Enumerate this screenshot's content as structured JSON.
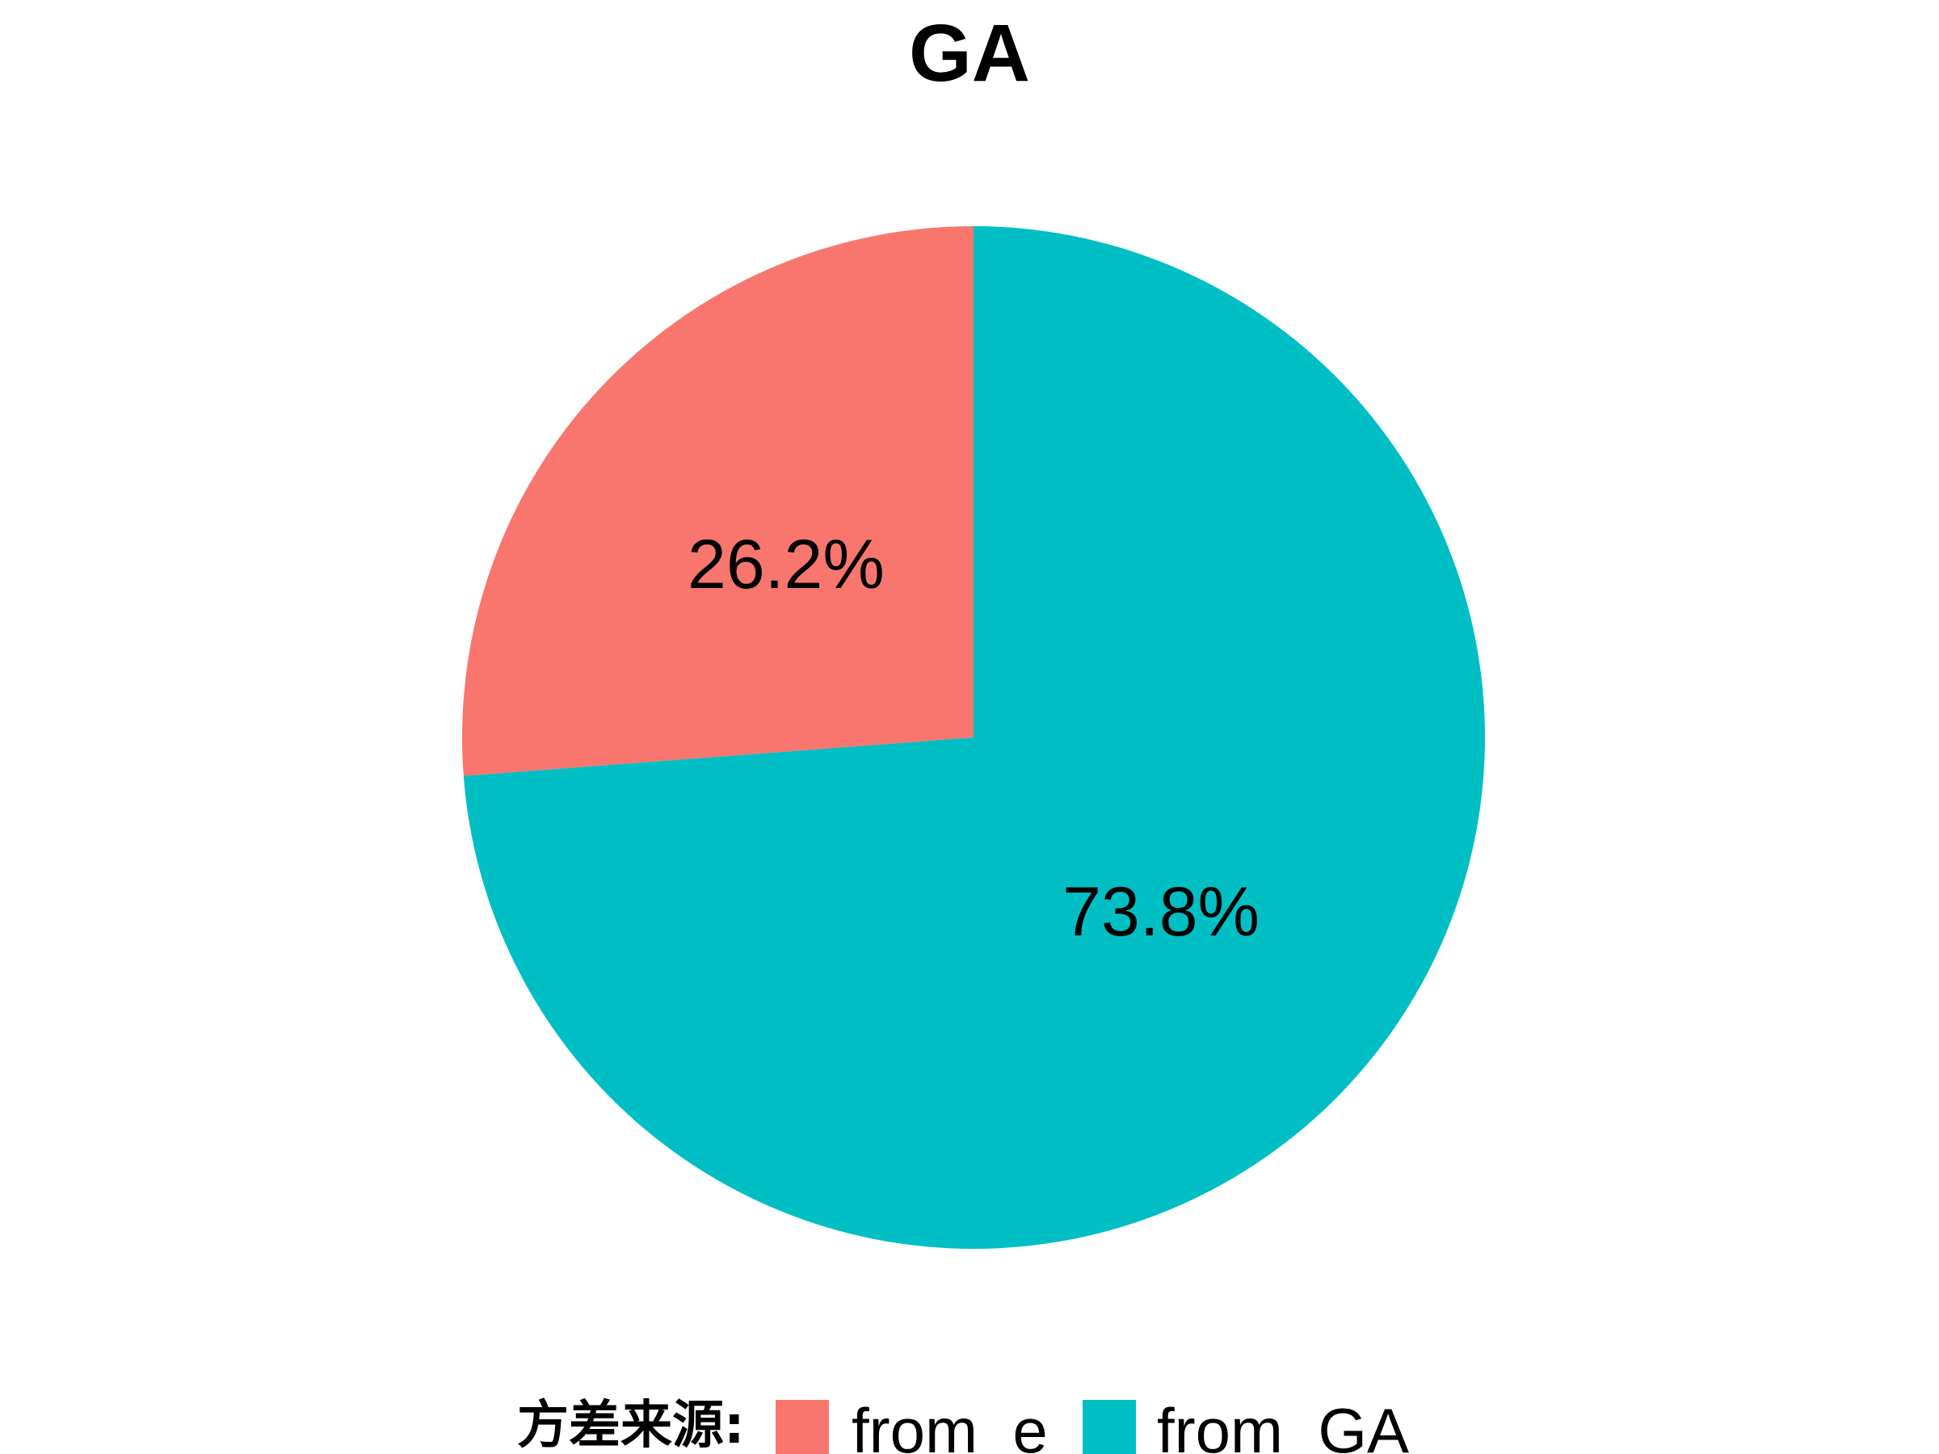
{
  "chart_data": {
    "type": "pie",
    "title": "GA",
    "slices": [
      {
        "name": "from  e",
        "value": 26.2,
        "label": "26.2%",
        "color": "#F8766D"
      },
      {
        "name": "from  GA",
        "value": 73.8,
        "label": "73.8%",
        "color": "#00BFC4"
      }
    ],
    "legend": {
      "title": "方差来源:",
      "placement": "bottom"
    }
  }
}
